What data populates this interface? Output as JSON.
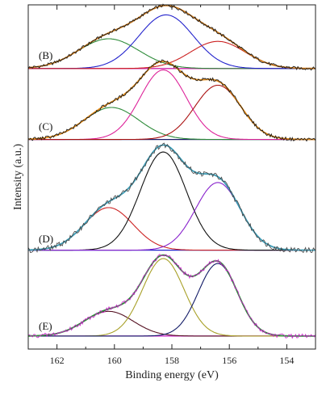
{
  "chart_data": {
    "type": "line",
    "title": "",
    "xlabel": "Binding energy (eV)",
    "ylabel": "Intensity (a.u.)",
    "xlim": [
      163,
      153
    ],
    "x_ticks": [
      162,
      160,
      158,
      156,
      154
    ],
    "x_reversed": true,
    "y_ticks_shown": false,
    "grid": false,
    "legend": "none",
    "panels": [
      {
        "label": "(B)",
        "baseline": 0.04,
        "components": [
          {
            "center": 160.2,
            "height": 0.46,
            "width": 1.05,
            "color": "#2e8b3a"
          },
          {
            "center": 158.2,
            "height": 0.83,
            "width": 0.95,
            "color": "#2222cc"
          },
          {
            "center": 156.4,
            "height": 0.42,
            "width": 0.95,
            "color": "#cc2222"
          }
        ],
        "envelope_color": "#c8781e",
        "data_color": "#111111",
        "baseline_color": "#cc22aa"
      },
      {
        "label": "(C)",
        "baseline": 0.04,
        "components": [
          {
            "center": 160.1,
            "height": 0.46,
            "width": 0.95,
            "color": "#2e8b3a"
          },
          {
            "center": 158.3,
            "height": 1.0,
            "width": 0.8,
            "color": "#dd2299"
          },
          {
            "center": 156.4,
            "height": 0.78,
            "width": 0.8,
            "color": "#aa1111"
          }
        ],
        "envelope_color": "#e08a1a",
        "data_color": "#111111",
        "baseline_color": "#1a1a66"
      },
      {
        "label": "(D)",
        "baseline": 0.04,
        "components": [
          {
            "center": 160.2,
            "height": 0.39,
            "width": 0.85,
            "color": "#cc2222"
          },
          {
            "center": 158.3,
            "height": 0.9,
            "width": 0.8,
            "color": "#111111"
          },
          {
            "center": 156.4,
            "height": 0.62,
            "width": 0.78,
            "color": "#8822cc"
          }
        ],
        "envelope_color": "#3b9bb5",
        "data_color": "#444444",
        "baseline_color": "#2222cc"
      },
      {
        "label": "(E)",
        "baseline": 0.04,
        "components": [
          {
            "center": 160.2,
            "height": 0.3,
            "width": 0.85,
            "color": "#551122"
          },
          {
            "center": 158.3,
            "height": 0.94,
            "width": 0.72,
            "color": "#a8a028"
          },
          {
            "center": 156.4,
            "height": 0.88,
            "width": 0.68,
            "color": "#111a66"
          }
        ],
        "envelope_color": "#2e8b3a",
        "data_color": "#cc22cc",
        "baseline_color": "#cc22cc"
      }
    ]
  }
}
